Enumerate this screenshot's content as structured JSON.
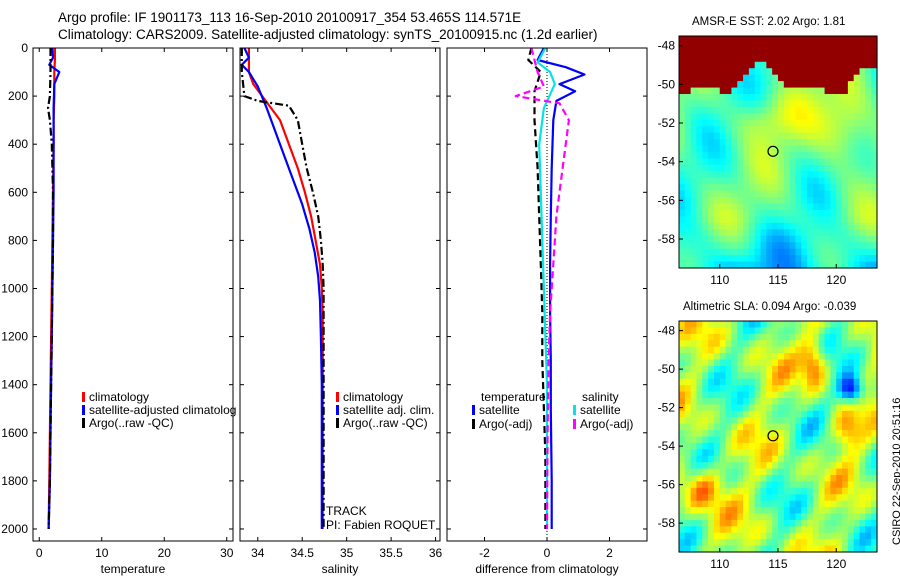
{
  "header": {
    "line1": "Argo profile: IF 1901173_113 16-Sep-2010 20100917_354 53.465S 114.571E",
    "line2": "Climatology: CARS2009. Satellite-adjusted climatology: synTS_20100915.nc (1.2d earlier)"
  },
  "footer_stamp": "CSIRO 22-Sep-2010 20:51:16",
  "chart_data": [
    {
      "type": "line",
      "id": "temperature",
      "xlabel": "temperature",
      "ylabel": "",
      "xlim": [
        -1,
        31
      ],
      "ylim": [
        2050,
        0
      ],
      "x_ticks": [
        0,
        10,
        20,
        30
      ],
      "y_ticks": [
        0,
        200,
        400,
        600,
        800,
        1000,
        1200,
        1400,
        1600,
        1800,
        2000
      ],
      "legend": [
        "climatology",
        "satellite-adjusted climatolog",
        "Argo(..raw -QC)"
      ],
      "series": [
        {
          "name": "climatology",
          "color": "#ff0000",
          "style": "solid",
          "x": [
            2.5,
            2.5,
            2.4,
            2.4,
            2.3,
            2.3,
            2.2,
            2.1,
            2.0,
            1.9,
            1.8,
            1.7,
            1.6,
            1.5
          ],
          "y": [
            0,
            50,
            100,
            200,
            300,
            400,
            600,
            800,
            1000,
            1200,
            1400,
            1600,
            1800,
            2000
          ]
        },
        {
          "name": "satellite-adjusted climatolog",
          "color": "#0000ff",
          "style": "solid",
          "x": [
            2.1,
            2.2,
            1.6,
            3.2,
            2.4,
            2.3,
            2.3,
            2.3,
            2.2,
            2.1,
            2.0,
            1.9,
            1.8,
            1.7,
            1.6,
            1.5
          ],
          "y": [
            0,
            40,
            70,
            100,
            150,
            250,
            400,
            600,
            800,
            1000,
            1200,
            1400,
            1600,
            1800,
            1900,
            2000
          ]
        },
        {
          "name": "Argo(..raw -QC)",
          "color": "#000000",
          "style": "dashdot",
          "x": [
            1.8,
            1.8,
            1.7,
            1.4,
            1.7,
            2.0,
            2.2,
            2.2,
            2.1,
            2.0,
            1.9,
            1.8,
            1.7,
            1.6,
            1.5
          ],
          "y": [
            0,
            100,
            200,
            250,
            300,
            400,
            600,
            800,
            1000,
            1200,
            1400,
            1600,
            1800,
            1900,
            2000
          ]
        }
      ]
    },
    {
      "type": "line",
      "id": "salinity",
      "xlabel": "salinity",
      "ylabel": "",
      "xlim": [
        33.8,
        36.05
      ],
      "ylim": [
        2050,
        0
      ],
      "x_ticks": [
        34,
        34.5,
        35,
        35.5,
        36
      ],
      "x_tick_labels": [
        "34",
        "34.5",
        "35",
        "35.5",
        "36"
      ],
      "legend": [
        "climatology",
        "satellite adj. clim.",
        "Argo(..raw -QC)"
      ],
      "annotations": [
        "TRACK",
        "PI: Fabien ROQUET"
      ],
      "series": [
        {
          "name": "climatology",
          "color": "#ff0000",
          "style": "solid",
          "x": [
            33.9,
            33.9,
            33.95,
            34.05,
            34.15,
            34.25,
            34.35,
            34.45,
            34.53,
            34.6,
            34.65,
            34.7,
            34.72,
            34.73,
            34.73,
            34.73,
            34.73,
            34.73
          ],
          "y": [
            0,
            100,
            150,
            200,
            250,
            300,
            400,
            500,
            600,
            700,
            800,
            900,
            1000,
            1100,
            1200,
            1400,
            1600,
            2000
          ]
        },
        {
          "name": "satellite adj. clim.",
          "color": "#0000ff",
          "style": "solid",
          "x": [
            33.85,
            33.9,
            33.82,
            33.9,
            34.0,
            34.1,
            34.2,
            34.3,
            34.4,
            34.5,
            34.58,
            34.64,
            34.68,
            34.7,
            34.71,
            34.72,
            34.72,
            34.72
          ],
          "y": [
            0,
            40,
            70,
            100,
            160,
            250,
            350,
            450,
            550,
            650,
            750,
            850,
            950,
            1050,
            1200,
            1400,
            1600,
            2000
          ]
        },
        {
          "name": "Argo(..raw -QC)",
          "color": "#000000",
          "style": "dashdot",
          "x": [
            33.82,
            33.82,
            33.85,
            34.0,
            34.35,
            34.45,
            34.5,
            34.55,
            34.62,
            34.68,
            34.71,
            34.73,
            34.74,
            34.74,
            34.74,
            34.74
          ],
          "y": [
            0,
            100,
            200,
            220,
            240,
            300,
            400,
            500,
            600,
            700,
            800,
            900,
            1000,
            1200,
            1400,
            2000
          ]
        }
      ]
    },
    {
      "type": "line",
      "id": "difference",
      "xlabel": "difference from climatology",
      "ylabel": "",
      "xlim": [
        -3.2,
        3.2
      ],
      "ylim": [
        2050,
        0
      ],
      "x_ticks": [
        -2,
        0,
        2
      ],
      "legend_headers": [
        "temperature",
        "salinity"
      ],
      "legend": [
        "satellite",
        "Argo(-adj)",
        "satellite",
        "Argo(-adj)"
      ],
      "series": [
        {
          "name": "satellite",
          "group": "temperature",
          "color": "#0000ff",
          "style": "solid",
          "x": [
            -0.1,
            -0.3,
            0.6,
            1.2,
            0.4,
            0.9,
            0.3,
            0.2,
            0.15,
            0.12,
            0.1,
            0.1,
            0.12,
            0.12,
            0.15,
            0.15
          ],
          "y": [
            0,
            50,
            80,
            110,
            150,
            180,
            220,
            300,
            500,
            700,
            900,
            1100,
            1300,
            1500,
            1800,
            2000
          ]
        },
        {
          "name": "Argo(-adj)",
          "group": "temperature",
          "color": "#000000",
          "style": "dashed",
          "x": [
            -0.5,
            -0.6,
            -0.2,
            -0.4,
            -0.4,
            -0.3,
            -0.25,
            -0.2,
            -0.15,
            -0.15,
            -0.1,
            -0.05,
            -0.05,
            -0.05
          ],
          "y": [
            0,
            50,
            100,
            180,
            300,
            500,
            700,
            900,
            1100,
            1300,
            1500,
            1700,
            1900,
            2000
          ]
        },
        {
          "name": "satellite",
          "group": "salinity",
          "color": "#00e5e5",
          "style": "solid",
          "x": [
            -0.05,
            -0.3,
            0.1,
            0.25,
            -0.1,
            -0.25,
            -0.2,
            -0.15,
            -0.1,
            -0.05,
            0.0,
            0.0,
            0.0,
            0.0
          ],
          "y": [
            0,
            60,
            100,
            150,
            250,
            400,
            600,
            800,
            1000,
            1200,
            1400,
            1600,
            1800,
            2000
          ]
        },
        {
          "name": "Argo(-adj)",
          "group": "salinity",
          "color": "#ff00ff",
          "style": "dashed",
          "x": [
            -0.5,
            -0.4,
            -0.3,
            -0.1,
            -1.0,
            0.4,
            0.7,
            0.5,
            0.3,
            0.2,
            0.1,
            0.05,
            0.02,
            0.0
          ],
          "y": [
            0,
            50,
            100,
            160,
            200,
            230,
            300,
            500,
            700,
            900,
            1100,
            1300,
            1600,
            2000
          ]
        }
      ]
    },
    {
      "type": "heatmap",
      "id": "sst-map",
      "title": "AMSR-E SST: 2.02  Argo: 1.81",
      "xlim": [
        106.5,
        123.5
      ],
      "ylim": [
        -59.5,
        -47.5
      ],
      "x_ticks": [
        110,
        115,
        120
      ],
      "y_ticks": [
        -48,
        -50,
        -52,
        -54,
        -56,
        -58
      ],
      "marker": {
        "lon": 114.571,
        "lat": -53.465
      }
    },
    {
      "type": "heatmap",
      "id": "sla-map",
      "title": "Altimetric SLA: 0.094  Argo: -0.039",
      "xlim": [
        106.5,
        123.5
      ],
      "ylim": [
        -59.5,
        -47.5
      ],
      "x_ticks": [
        110,
        115,
        120
      ],
      "y_ticks": [
        -48,
        -50,
        -52,
        -54,
        -56,
        -58
      ],
      "marker": {
        "lon": 114.571,
        "lat": -53.465
      }
    }
  ]
}
